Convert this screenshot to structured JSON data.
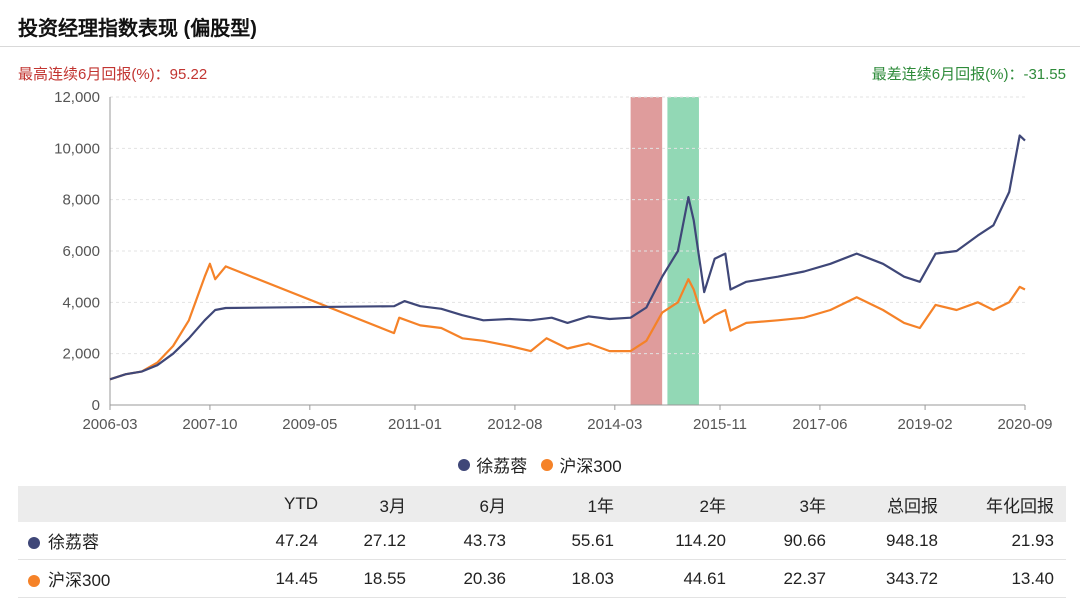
{
  "title": "投资经理指数表现 (偏股型)",
  "best_stat": {
    "label": "最高连续6月回报(%)：",
    "value": "95.22",
    "color": "#c23531"
  },
  "worst_stat": {
    "label": "最差连续6月回报(%)：",
    "value": "-31.55",
    "color": "#2e8b3a"
  },
  "chart_data": {
    "type": "line",
    "x_ticks": [
      "2006-03",
      "2007-10",
      "2009-05",
      "2011-01",
      "2012-08",
      "2014-03",
      "2015-11",
      "2017-06",
      "2019-02",
      "2020-09"
    ],
    "y_ticks": [
      "0",
      "2,000",
      "4,000",
      "6,000",
      "8,000",
      "10,000",
      "12,000"
    ],
    "ylim": [
      0,
      12000
    ],
    "xlim": [
      "2006-03",
      "2020-09"
    ],
    "grid": true,
    "legend_position": "bottom-center",
    "highlight_bands": [
      {
        "name": "best-6m",
        "start": "2014-06",
        "end": "2014-12",
        "color": "#d98b8b"
      },
      {
        "name": "worst-6m",
        "start": "2015-01",
        "end": "2015-07",
        "color": "#7fd1a8"
      }
    ],
    "series": [
      {
        "name": "徐荔蓉",
        "color": "#3f4778",
        "points": [
          [
            "2006-03",
            1000
          ],
          [
            "2006-06",
            1200
          ],
          [
            "2006-09",
            1300
          ],
          [
            "2006-12",
            1550
          ],
          [
            "2007-03",
            2000
          ],
          [
            "2007-06",
            2600
          ],
          [
            "2007-09",
            3300
          ],
          [
            "2007-11",
            3700
          ],
          [
            "2008-01",
            3780
          ],
          [
            "2010-09",
            3850
          ],
          [
            "2010-11",
            4050
          ],
          [
            "2011-02",
            3850
          ],
          [
            "2011-06",
            3750
          ],
          [
            "2011-10",
            3500
          ],
          [
            "2012-02",
            3300
          ],
          [
            "2012-07",
            3350
          ],
          [
            "2012-11",
            3300
          ],
          [
            "2013-03",
            3400
          ],
          [
            "2013-06",
            3200
          ],
          [
            "2013-10",
            3450
          ],
          [
            "2014-02",
            3350
          ],
          [
            "2014-06",
            3400
          ],
          [
            "2014-09",
            3800
          ],
          [
            "2014-12",
            5000
          ],
          [
            "2015-03",
            6000
          ],
          [
            "2015-05",
            8100
          ],
          [
            "2015-06",
            7200
          ],
          [
            "2015-08",
            4400
          ],
          [
            "2015-10",
            5700
          ],
          [
            "2015-12",
            5900
          ],
          [
            "2016-01",
            4500
          ],
          [
            "2016-04",
            4800
          ],
          [
            "2016-10",
            5000
          ],
          [
            "2017-03",
            5200
          ],
          [
            "2017-08",
            5500
          ],
          [
            "2018-01",
            5900
          ],
          [
            "2018-06",
            5500
          ],
          [
            "2018-10",
            5000
          ],
          [
            "2019-01",
            4800
          ],
          [
            "2019-04",
            5900
          ],
          [
            "2019-08",
            6000
          ],
          [
            "2019-12",
            6600
          ],
          [
            "2020-03",
            7000
          ],
          [
            "2020-06",
            8300
          ],
          [
            "2020-08",
            10500
          ],
          [
            "2020-09",
            10300
          ]
        ]
      },
      {
        "name": "沪深300",
        "color": "#f58228",
        "points": [
          [
            "2006-03",
            1000
          ],
          [
            "2006-06",
            1200
          ],
          [
            "2006-09",
            1300
          ],
          [
            "2006-12",
            1650
          ],
          [
            "2007-03",
            2300
          ],
          [
            "2007-06",
            3300
          ],
          [
            "2007-09",
            5000
          ],
          [
            "2007-10",
            5500
          ],
          [
            "2007-11",
            4900
          ],
          [
            "2008-01",
            5400
          ],
          [
            "2010-09",
            2800
          ],
          [
            "2010-10",
            3400
          ],
          [
            "2011-02",
            3100
          ],
          [
            "2011-06",
            3000
          ],
          [
            "2011-10",
            2600
          ],
          [
            "2012-02",
            2500
          ],
          [
            "2012-07",
            2300
          ],
          [
            "2012-11",
            2100
          ],
          [
            "2013-02",
            2600
          ],
          [
            "2013-06",
            2200
          ],
          [
            "2013-10",
            2400
          ],
          [
            "2014-02",
            2100
          ],
          [
            "2014-06",
            2100
          ],
          [
            "2014-09",
            2500
          ],
          [
            "2014-12",
            3600
          ],
          [
            "2015-03",
            4000
          ],
          [
            "2015-05",
            4900
          ],
          [
            "2015-06",
            4500
          ],
          [
            "2015-08",
            3200
          ],
          [
            "2015-10",
            3500
          ],
          [
            "2015-12",
            3700
          ],
          [
            "2016-01",
            2900
          ],
          [
            "2016-04",
            3200
          ],
          [
            "2016-10",
            3300
          ],
          [
            "2017-03",
            3400
          ],
          [
            "2017-08",
            3700
          ],
          [
            "2018-01",
            4200
          ],
          [
            "2018-06",
            3700
          ],
          [
            "2018-10",
            3200
          ],
          [
            "2019-01",
            3000
          ],
          [
            "2019-04",
            3900
          ],
          [
            "2019-08",
            3700
          ],
          [
            "2019-12",
            4000
          ],
          [
            "2020-03",
            3700
          ],
          [
            "2020-06",
            4000
          ],
          [
            "2020-08",
            4600
          ],
          [
            "2020-09",
            4500
          ]
        ]
      }
    ]
  },
  "table": {
    "headers": [
      "",
      "YTD",
      "3月",
      "6月",
      "1年",
      "2年",
      "3年",
      "总回报",
      "年化回报"
    ],
    "rows": [
      {
        "name": "徐荔蓉",
        "color": "#3f4778",
        "values": [
          "47.24",
          "27.12",
          "43.73",
          "55.61",
          "114.20",
          "90.66",
          "948.18",
          "21.93"
        ]
      },
      {
        "name": "沪深300",
        "color": "#f58228",
        "values": [
          "14.45",
          "18.55",
          "20.36",
          "18.03",
          "44.61",
          "22.37",
          "343.72",
          "13.40"
        ]
      }
    ]
  }
}
